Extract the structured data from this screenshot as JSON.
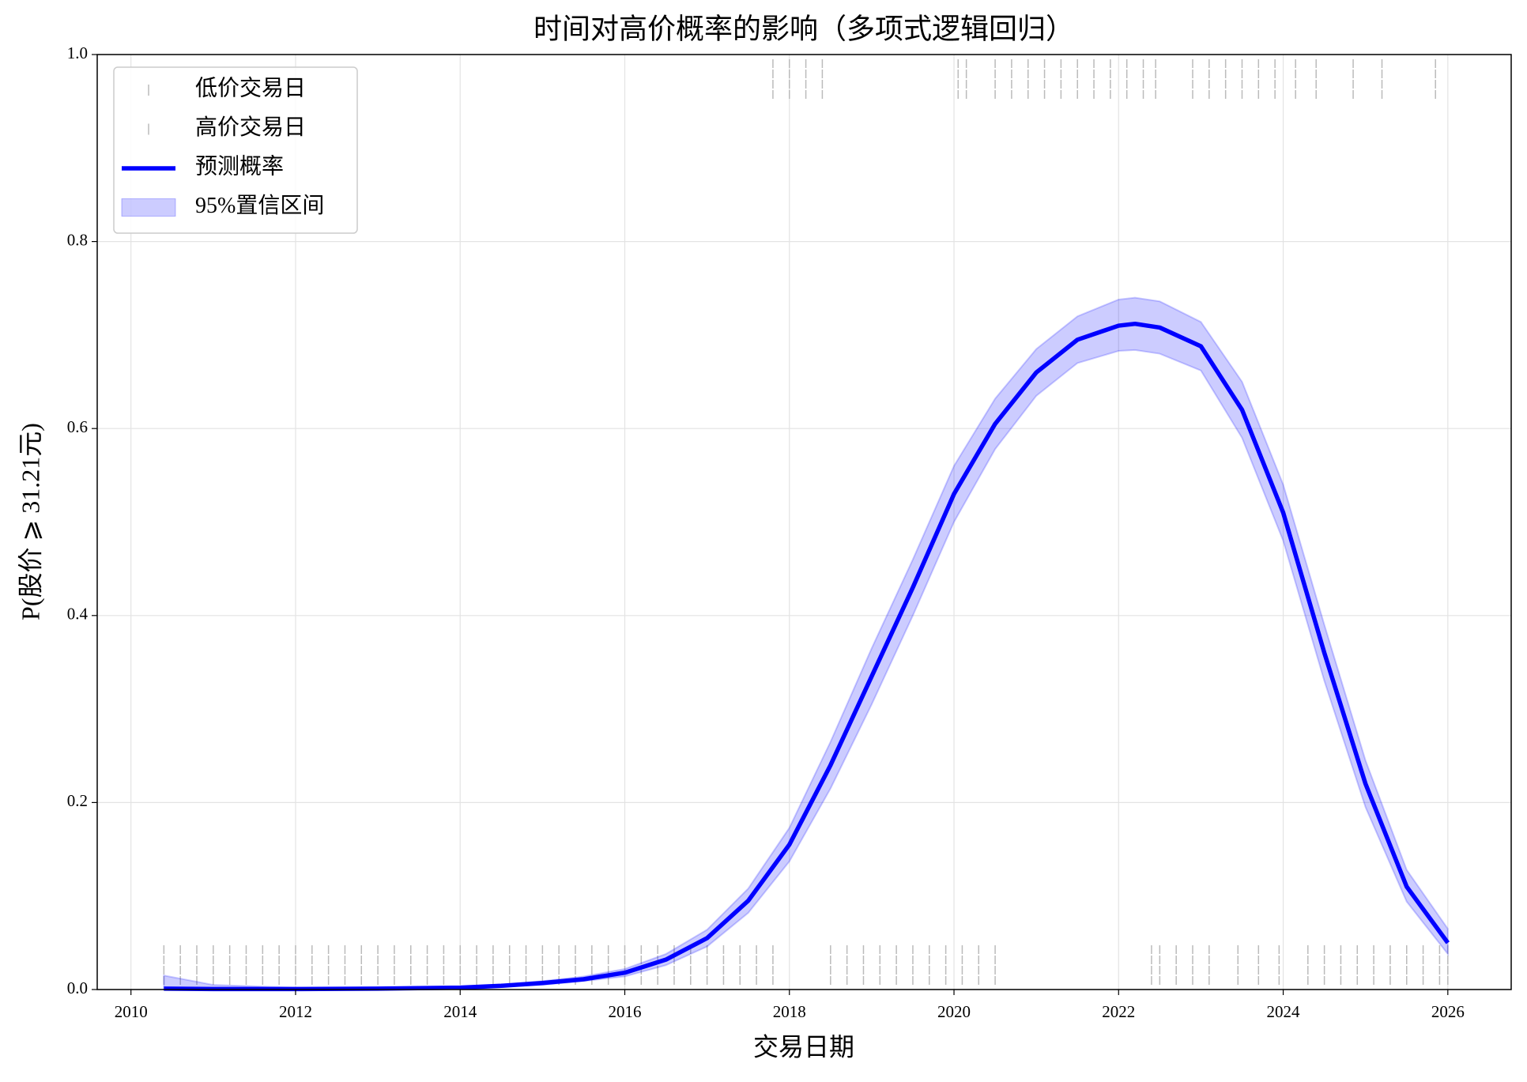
{
  "chart_data": {
    "type": "line",
    "title": "时间对高价概率的影响（多项式逻辑回归）",
    "xlabel": "交易日期",
    "ylabel": "P(股价 ⩾ 31.21元)",
    "x": [
      2010.4,
      2011,
      2012,
      2013,
      2014,
      2014.5,
      2015,
      2015.5,
      2016,
      2016.5,
      2017,
      2017.5,
      2018,
      2018.5,
      2019,
      2019.5,
      2020,
      2020.5,
      2021,
      2021.5,
      2022,
      2022.2,
      2022.5,
      2023,
      2023.5,
      2024,
      2024.5,
      2025,
      2025.5,
      2026
    ],
    "series": [
      {
        "name": "预测概率",
        "color": "#0000ff",
        "values": [
          0.001,
          0.0005,
          0.0005,
          0.001,
          0.002,
          0.004,
          0.007,
          0.011,
          0.018,
          0.032,
          0.055,
          0.095,
          0.155,
          0.24,
          0.335,
          0.43,
          0.53,
          0.605,
          0.66,
          0.695,
          0.71,
          0.712,
          0.708,
          0.688,
          0.62,
          0.51,
          0.36,
          0.22,
          0.11,
          0.05
        ]
      }
    ],
    "interval": {
      "name": "95%置信区间",
      "color": "#0000ff",
      "lower": [
        0,
        0,
        0,
        0,
        0.001,
        0.003,
        0.005,
        0.009,
        0.014,
        0.026,
        0.046,
        0.082,
        0.137,
        0.215,
        0.305,
        0.4,
        0.5,
        0.578,
        0.635,
        0.67,
        0.683,
        0.684,
        0.68,
        0.662,
        0.59,
        0.48,
        0.33,
        0.195,
        0.094,
        0.038
      ],
      "upper": [
        0.015,
        0.005,
        0.002,
        0.002,
        0.003,
        0.005,
        0.009,
        0.014,
        0.022,
        0.038,
        0.064,
        0.108,
        0.173,
        0.265,
        0.365,
        0.46,
        0.56,
        0.632,
        0.685,
        0.72,
        0.738,
        0.74,
        0.736,
        0.714,
        0.65,
        0.54,
        0.39,
        0.245,
        0.128,
        0.065
      ]
    },
    "rugs": [
      {
        "name": "低价交易日",
        "color": "#bbbbbb",
        "x": [
          2010.4,
          2010.6,
          2010.8,
          2011.0,
          2011.2,
          2011.4,
          2011.6,
          2011.8,
          2012.0,
          2012.2,
          2012.4,
          2012.6,
          2012.8,
          2013.0,
          2013.2,
          2013.4,
          2013.6,
          2013.8,
          2014.0,
          2014.2,
          2014.4,
          2014.6,
          2014.8,
          2015.0,
          2015.2,
          2015.4,
          2015.6,
          2015.8,
          2016.0,
          2016.2,
          2016.4,
          2016.6,
          2016.8,
          2017.0,
          2017.2,
          2017.4,
          2017.6,
          2017.8,
          2018.5,
          2018.7,
          2018.9,
          2019.1,
          2019.3,
          2019.5,
          2019.7,
          2019.9,
          2020.1,
          2020.3,
          2020.5,
          2022.4,
          2022.5,
          2022.7,
          2022.9,
          2023.1,
          2023.45,
          2023.7,
          2023.95,
          2024.3,
          2024.5,
          2024.7,
          2024.9,
          2025.1,
          2025.3,
          2025.5,
          2025.7,
          2025.9,
          2026.0
        ],
        "values": [
          0,
          0,
          0,
          0,
          0,
          0,
          0,
          0,
          0,
          0,
          0,
          0,
          0,
          0,
          0,
          0,
          0,
          0,
          0,
          0,
          0,
          0,
          0,
          0,
          0,
          0,
          0,
          0,
          0,
          0,
          0,
          0,
          0,
          0,
          0,
          0,
          0,
          0,
          0,
          0,
          0,
          0,
          0,
          0,
          0,
          0,
          0,
          0,
          0,
          0,
          0,
          0,
          0,
          0,
          0,
          0,
          0,
          0,
          0,
          0,
          0,
          0,
          0,
          0,
          0,
          0,
          0
        ]
      },
      {
        "name": "高价交易日",
        "color": "#bbbbbb",
        "x": [
          2017.8,
          2018.0,
          2018.2,
          2018.4,
          2020.05,
          2020.15,
          2020.5,
          2020.7,
          2020.9,
          2021.1,
          2021.3,
          2021.5,
          2021.7,
          2021.9,
          2022.1,
          2022.3,
          2022.45,
          2022.9,
          2023.1,
          2023.3,
          2023.5,
          2023.7,
          2023.9,
          2024.15,
          2024.4,
          2024.85,
          2025.2,
          2025.85
        ],
        "values": [
          1,
          1,
          1,
          1,
          1,
          1,
          1,
          1,
          1,
          1,
          1,
          1,
          1,
          1,
          1,
          1,
          1,
          1,
          1,
          1,
          1,
          1,
          1,
          1,
          1,
          1,
          1,
          1
        ]
      }
    ],
    "xlim": [
      2009.59,
      2026.77
    ],
    "xticks": [
      2010,
      2012,
      2014,
      2016,
      2018,
      2020,
      2022,
      2024,
      2026
    ],
    "ylim": [
      0,
      1
    ],
    "yticks": [
      {
        "value": 0,
        "label": "0.0"
      },
      {
        "value": 0.2,
        "label": "0.2"
      },
      {
        "value": 0.4,
        "label": "0.4"
      },
      {
        "value": 0.6,
        "label": "0.6"
      },
      {
        "value": 0.8,
        "label": "0.8"
      },
      {
        "value": 1,
        "label": "1.0"
      }
    ],
    "grid": true,
    "legend": "upper left"
  }
}
